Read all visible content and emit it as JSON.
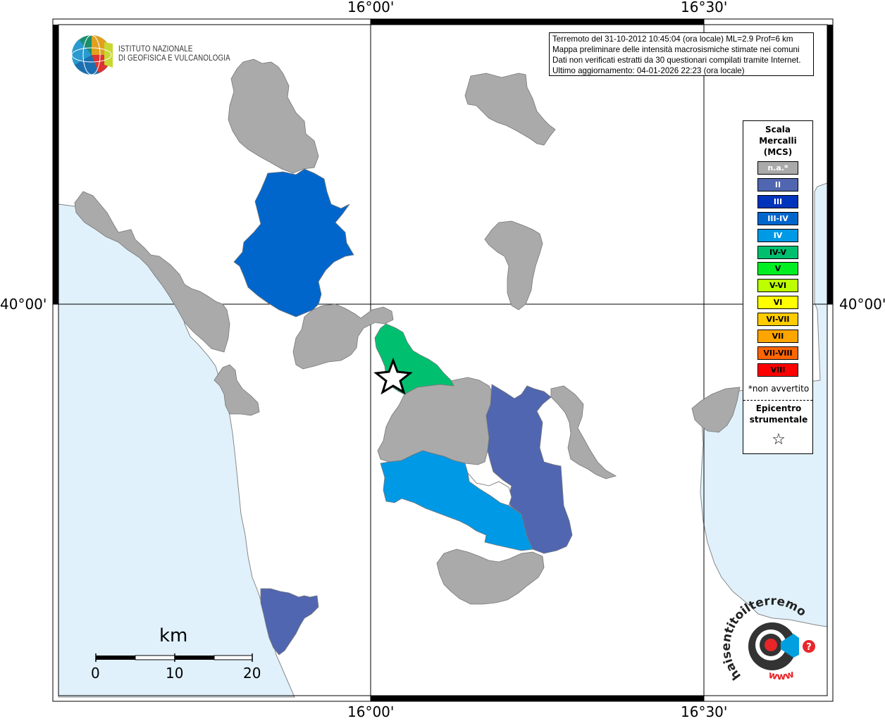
{
  "grid": {
    "top_left": "16°00'",
    "top_right": "16°30'",
    "bottom_left": "16°00'",
    "bottom_right": "16°30'",
    "left": "40°00'",
    "right": "40°00'"
  },
  "logo": {
    "line1": "ISTITUTO NAZIONALE",
    "line2": "DI GEOFISICA E VULCANOLOGIA"
  },
  "info": {
    "line1": "Terremoto del 31-10-2012 10:45:04 (ora locale) ML=2.9 Prof=6 km",
    "line2": "Mappa preliminare delle intensità macrosismiche stimate nei comuni",
    "line3": "Dati non verificati estratti da 30 questionari compilati tramite Internet.",
    "line4": "Ultimo aggiornamento: 04-01-2026 22:23 (ora locale)"
  },
  "legend": {
    "title1": "Scala",
    "title2": "Mercalli",
    "title3": "(MCS)",
    "items": [
      {
        "label": "n.a.*",
        "color": "#aaaaaa",
        "text_color": "#ffffff"
      },
      {
        "label": "II",
        "color": "#5066b0",
        "text_color": "#ffffff"
      },
      {
        "label": "III",
        "color": "#0033bb",
        "text_color": "#ffffff"
      },
      {
        "label": "III-IV",
        "color": "#0066cc",
        "text_color": "#ffffff"
      },
      {
        "label": "IV",
        "color": "#0099e6",
        "text_color": "#ffffff"
      },
      {
        "label": "IV-V",
        "color": "#00c070",
        "text_color": "#000000"
      },
      {
        "label": "V",
        "color": "#00ee22",
        "text_color": "#000000"
      },
      {
        "label": "V-VI",
        "color": "#bbff00",
        "text_color": "#000000"
      },
      {
        "label": "VI",
        "color": "#ffff00",
        "text_color": "#000000"
      },
      {
        "label": "VI-VII",
        "color": "#ffcc00",
        "text_color": "#000000"
      },
      {
        "label": "VII",
        "color": "#ffa500",
        "text_color": "#000000"
      },
      {
        "label": "VII-VIII",
        "color": "#ff6600",
        "text_color": "#000000"
      },
      {
        "label": "VIII",
        "color": "#ff0000",
        "text_color": "#000000"
      }
    ],
    "note": "*non avvertito",
    "epi1": "Epicentro",
    "epi2": "strumentale",
    "star": "☆"
  },
  "scale": {
    "unit": "km",
    "ticks": [
      "0",
      "10",
      "20"
    ]
  },
  "colors": {
    "sea": "#e0f1fc",
    "na": "#aaaaaa",
    "II": "#5066b0",
    "III_IV": "#0066cc",
    "IV": "#0099e6",
    "IV_V": "#00c070"
  },
  "haisentito": {
    "text": "haisentitoilterremoto.it",
    "www": "www",
    "mark": "?"
  }
}
